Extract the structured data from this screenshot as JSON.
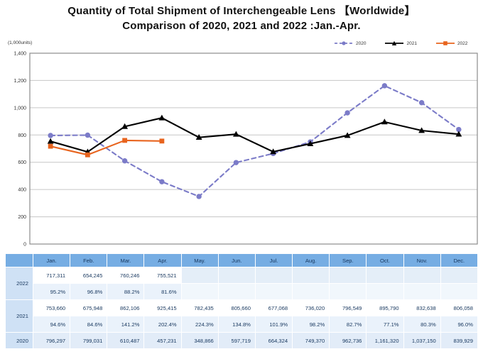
{
  "title": {
    "line1": "Quantity of Total Shipment of Interchengeable Lens 【Worldwide】",
    "line2": "Comparison of 2020, 2021 and 2022 :Jan.-Apr."
  },
  "chart_data": {
    "type": "line",
    "unit_label": "(1,000units)",
    "categories": [
      "Jan.",
      "Feb.",
      "Mar.",
      "Apr.",
      "May.",
      "Jun.",
      "Jul.",
      "Aug.",
      "Sep.",
      "Oct.",
      "Nov.",
      "Dec."
    ],
    "ylim": [
      0,
      1400
    ],
    "ytick_step": 200,
    "ytick_labels": [
      "0",
      "200",
      "400",
      "600",
      "800",
      "1,000",
      "1,200",
      "1,400"
    ],
    "grid": true,
    "legend_position": "top-right",
    "colors": {
      "grid": "#C6C6C6",
      "plot_border": "#8C8C8C"
    },
    "series": [
      {
        "name": "2020",
        "color": "#7B7BC8",
        "style": "dashed",
        "marker": "circle",
        "values": [
          796.297,
          799.031,
          610.487,
          457.231,
          348.866,
          597.719,
          664.324,
          749.37,
          962.736,
          1161.32,
          1037.15,
          839.929
        ]
      },
      {
        "name": "2021",
        "color": "#000000",
        "style": "solid",
        "marker": "triangle",
        "values": [
          753.66,
          675.948,
          862.106,
          925.415,
          782.435,
          805.66,
          677.068,
          736.02,
          796.549,
          895.79,
          832.638,
          806.058
        ]
      },
      {
        "name": "2022",
        "color": "#E8641E",
        "style": "solid",
        "marker": "square",
        "values": [
          717.311,
          654.245,
          760.246,
          755.521
        ]
      }
    ]
  },
  "table": {
    "corner_label": "",
    "months": [
      "Jan.",
      "Feb.",
      "Mar.",
      "Apr.",
      "May.",
      "Jun.",
      "Jul.",
      "Aug.",
      "Sep.",
      "Oct.",
      "Nov.",
      "Dec."
    ],
    "row_groups": [
      {
        "year": "2022",
        "units": [
          "717,311",
          "654,245",
          "760,246",
          "755,521",
          "",
          "",
          "",
          "",
          "",
          "",
          "",
          ""
        ],
        "percent": [
          "95.2%",
          "96.8%",
          "88.2%",
          "81.6%",
          "",
          "",
          "",
          "",
          "",
          "",
          "",
          ""
        ]
      },
      {
        "year": "2021",
        "units": [
          "753,660",
          "675,948",
          "862,106",
          "925,415",
          "782,435",
          "805,660",
          "677,068",
          "736,020",
          "796,549",
          "895,790",
          "832,638",
          "806,058"
        ],
        "percent": [
          "94.6%",
          "84.6%",
          "141.2%",
          "202.4%",
          "224.3%",
          "134.8%",
          "101.9%",
          "98.2%",
          "82.7%",
          "77.1%",
          "80.3%",
          "96.0%"
        ]
      },
      {
        "year": "2020",
        "units": [
          "796,297",
          "799,031",
          "610,487",
          "457,231",
          "348,866",
          "597,719",
          "664,324",
          "749,370",
          "962,736",
          "1,161,320",
          "1,037,150",
          "839,929"
        ],
        "percent": null
      }
    ],
    "colors": {
      "header_bg": "#76ADE3",
      "year_bg": "#CFE1F5",
      "units_bg": "#FFFFFF",
      "percent_bg": "#EAF2FB",
      "bottom_row_bg": "#E2ECF8",
      "text": "#17375E"
    }
  }
}
